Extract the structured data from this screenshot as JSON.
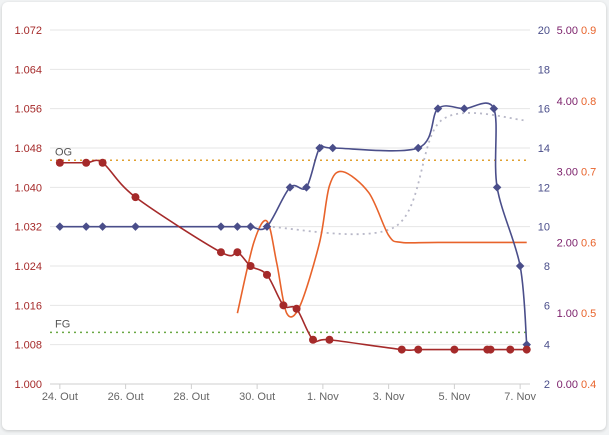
{
  "colors": {
    "gravity": "#a52a2a",
    "temperature": "#4a4e8a",
    "ph": "#7b1f6a",
    "angle": "#e8632b",
    "og_line": "#e0a030",
    "fg_line": "#6aa843",
    "grid": "#e6e6e6"
  },
  "chart_data": {
    "type": "line",
    "title": "",
    "x_ticks": [
      "24. Out",
      "26. Out",
      "28. Out",
      "30. Out",
      "1. Nov",
      "3. Nov",
      "5. Nov",
      "7. Nov"
    ],
    "x_range_days": [
      -0.3,
      14.3
    ],
    "axes": {
      "gravity": {
        "ticks": [
          "1.000",
          "1.008",
          "1.016",
          "1.024",
          "1.032",
          "1.040",
          "1.048",
          "1.056",
          "1.064",
          "1.072"
        ],
        "range": [
          1.0,
          1.072
        ]
      },
      "temperature": {
        "ticks": [
          "2",
          "4",
          "6",
          "8",
          "10",
          "12",
          "14",
          "16",
          "18",
          "20"
        ],
        "range": [
          2,
          20
        ]
      },
      "ph": {
        "ticks": [
          "0.00",
          "1.00",
          "2.00",
          "3.00",
          "4.00",
          "5.00"
        ],
        "range": [
          0,
          5
        ]
      },
      "angle": {
        "ticks": [
          "0.4",
          "0.5",
          "0.6",
          "0.7",
          "0.8",
          "0.9"
        ],
        "range": [
          0.4,
          0.9
        ]
      }
    },
    "reference_lines": [
      {
        "label": "OG",
        "value": 1.0455
      },
      {
        "label": "FG",
        "value": 1.0105
      }
    ],
    "series": [
      {
        "key": "gravity",
        "axis": "gravity",
        "points": [
          [
            0,
            1.045
          ],
          [
            0.8,
            1.045
          ],
          [
            1.3,
            1.045
          ],
          [
            2.3,
            1.038
          ],
          [
            4.9,
            1.0268
          ],
          [
            5.4,
            1.0268
          ],
          [
            5.8,
            1.024
          ],
          [
            6.3,
            1.0222
          ],
          [
            6.8,
            1.016
          ],
          [
            7.2,
            1.0153
          ],
          [
            7.7,
            1.009
          ],
          [
            8.2,
            1.009
          ],
          [
            10.4,
            1.007
          ],
          [
            10.9,
            1.007
          ],
          [
            12.0,
            1.007
          ],
          [
            13.0,
            1.007
          ],
          [
            13.1,
            1.007
          ],
          [
            13.7,
            1.007
          ],
          [
            14.2,
            1.007
          ]
        ]
      },
      {
        "key": "temperature",
        "axis": "temperature",
        "points": [
          [
            0,
            10
          ],
          [
            0.8,
            10
          ],
          [
            1.3,
            10
          ],
          [
            2.3,
            10
          ],
          [
            4.9,
            10
          ],
          [
            5.4,
            10
          ],
          [
            5.8,
            10
          ],
          [
            6.3,
            10
          ],
          [
            7.0,
            12
          ],
          [
            7.5,
            12
          ],
          [
            7.9,
            14
          ],
          [
            8.3,
            14
          ],
          [
            10.9,
            14
          ],
          [
            11.5,
            16
          ],
          [
            12.3,
            16
          ],
          [
            13.2,
            16
          ],
          [
            13.3,
            12
          ],
          [
            14.0,
            8
          ],
          [
            14.2,
            4
          ]
        ]
      },
      {
        "key": "temperature_setpoint",
        "axis": "temperature",
        "dotted": true,
        "points": [
          [
            6.3,
            10
          ],
          [
            10.2,
            10
          ],
          [
            11.6,
            15.4
          ],
          [
            14.2,
            15.4
          ]
        ]
      },
      {
        "key": "angle",
        "axis": "angle",
        "points": [
          [
            5.4,
            0.5
          ],
          [
            5.9,
            0.6
          ],
          [
            6.3,
            0.63
          ],
          [
            6.6,
            0.57
          ],
          [
            6.9,
            0.5
          ],
          [
            7.3,
            0.51
          ],
          [
            7.9,
            0.6
          ],
          [
            8.2,
            0.68
          ],
          [
            8.6,
            0.7
          ],
          [
            9.4,
            0.67
          ],
          [
            10.0,
            0.61
          ],
          [
            10.4,
            0.6
          ],
          [
            11.5,
            0.6
          ],
          [
            14.2,
            0.6
          ]
        ]
      }
    ]
  }
}
